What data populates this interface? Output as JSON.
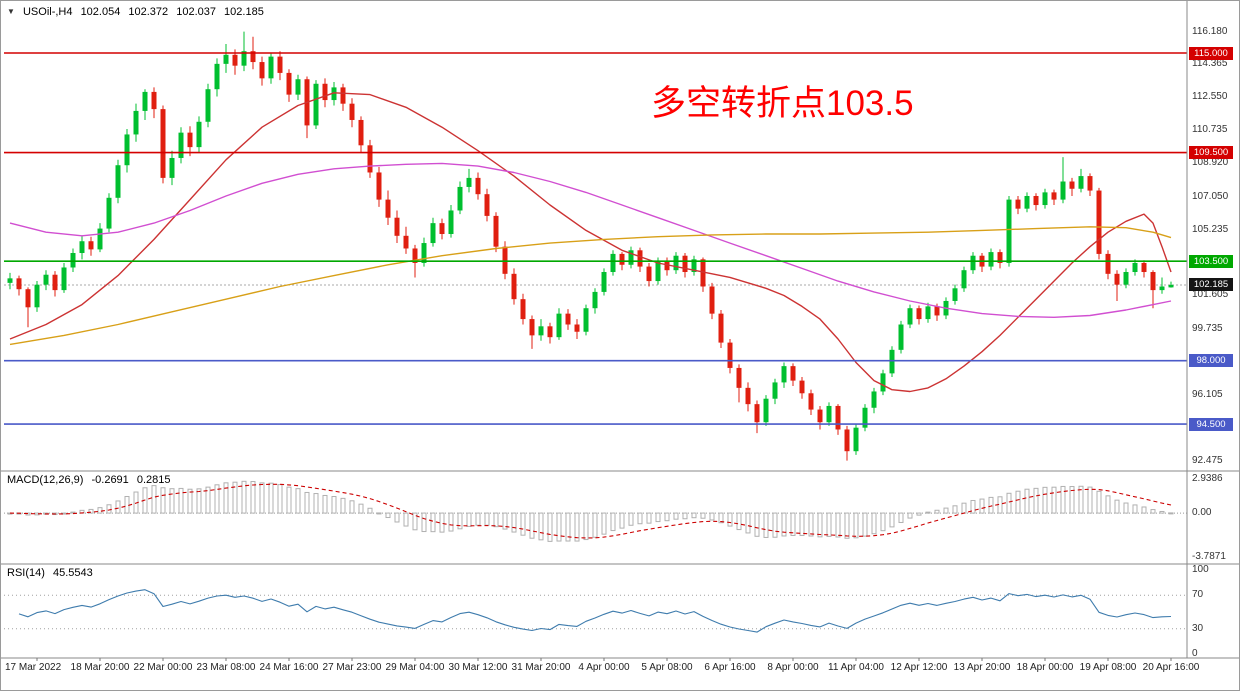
{
  "header": {
    "menu_icon": "▼",
    "symbol": "USOil-,H4",
    "open": "102.054",
    "high": "102.372",
    "low": "102.037",
    "close": "102.185"
  },
  "annotation": {
    "text": "多空转折点103.5",
    "color": "#ff0000"
  },
  "macd_panel": {
    "label": "MACD(12,26,9)",
    "value_main": "-0.2691",
    "value_signal": "0.2815",
    "axis_labels": [
      "2.9386",
      "0.00",
      "-3.7871"
    ],
    "axis_values": [
      2.9386,
      0,
      -3.7871
    ]
  },
  "rsi_panel": {
    "label": "RSI(14)",
    "value": "45.5543",
    "axis_labels": [
      "100",
      "70",
      "30",
      "0"
    ],
    "axis_values": [
      100,
      70,
      30,
      0
    ]
  },
  "chart_data": {
    "type": "candlestick",
    "symbol": "USOil-",
    "timeframe": "H4",
    "ylim": [
      92.0,
      117.0
    ],
    "price_axis_ticks": [
      "116.180",
      "114.365",
      "112.550",
      "110.735",
      "108.920",
      "107.050",
      "105.235",
      "101.605",
      "99.735",
      "96.105",
      "92.475"
    ],
    "x_labels": [
      "17 Mar 2022",
      "18 Mar 20:00",
      "22 Mar 00:00",
      "23 Mar 08:00",
      "24 Mar 16:00",
      "27 Mar 23:00",
      "29 Mar 04:00",
      "30 Mar 12:00",
      "31 Mar 20:00",
      "4 Apr 00:00",
      "5 Apr 08:00",
      "6 Apr 16:00",
      "8 Apr 00:00",
      "11 Apr 04:00",
      "12 Apr 12:00",
      "13 Apr 20:00",
      "18 Apr 00:00",
      "19 Apr 08:00",
      "20 Apr 16:00"
    ],
    "levels": [
      {
        "price": 115.0,
        "label": "115.000",
        "color": "#d40000"
      },
      {
        "price": 109.5,
        "label": "109.500",
        "color": "#d40000"
      },
      {
        "price": 103.5,
        "label": "103.500",
        "color": "#00a800"
      },
      {
        "price": 98.0,
        "label": "98.000",
        "color": "#4a5ac8"
      },
      {
        "price": 94.5,
        "label": "94.500",
        "color": "#4a5ac8"
      }
    ],
    "current_price": {
      "value": 102.185,
      "label": "102.185",
      "badge_color": "#141414"
    },
    "up_color": "#00bf2f",
    "down_color": "#e01f10",
    "candles": [
      [
        102.3,
        102.85,
        101.95,
        102.55
      ],
      [
        102.55,
        102.7,
        101.6,
        101.95
      ],
      [
        101.95,
        102.05,
        99.85,
        100.95
      ],
      [
        100.95,
        102.4,
        100.7,
        102.2
      ],
      [
        102.2,
        103.0,
        101.9,
        102.75
      ],
      [
        102.75,
        102.95,
        101.55,
        101.9
      ],
      [
        101.9,
        103.4,
        101.75,
        103.15
      ],
      [
        103.15,
        104.2,
        102.9,
        103.95
      ],
      [
        103.95,
        104.9,
        103.6,
        104.6
      ],
      [
        104.6,
        104.85,
        103.8,
        104.15
      ],
      [
        104.15,
        105.6,
        104.0,
        105.3
      ],
      [
        105.3,
        107.25,
        105.1,
        107.0
      ],
      [
        107.0,
        109.1,
        106.7,
        108.8
      ],
      [
        108.8,
        110.8,
        108.4,
        110.5
      ],
      [
        110.5,
        112.2,
        110.1,
        111.8
      ],
      [
        111.8,
        113.0,
        111.3,
        112.85
      ],
      [
        112.85,
        113.1,
        111.4,
        111.9
      ],
      [
        111.9,
        112.1,
        107.8,
        108.1
      ],
      [
        108.1,
        109.6,
        107.7,
        109.2
      ],
      [
        109.2,
        110.9,
        108.9,
        110.6
      ],
      [
        110.6,
        110.95,
        109.3,
        109.8
      ],
      [
        109.8,
        111.5,
        109.5,
        111.2
      ],
      [
        111.2,
        113.3,
        110.9,
        113.0
      ],
      [
        113.0,
        114.7,
        112.6,
        114.4
      ],
      [
        114.4,
        115.5,
        113.9,
        114.9
      ],
      [
        114.9,
        115.2,
        113.8,
        114.3
      ],
      [
        114.3,
        116.18,
        114.0,
        115.1
      ],
      [
        115.1,
        115.9,
        114.1,
        114.5
      ],
      [
        114.5,
        114.8,
        113.2,
        113.6
      ],
      [
        113.6,
        115.0,
        113.3,
        114.8
      ],
      [
        114.8,
        115.1,
        113.5,
        113.9
      ],
      [
        113.9,
        114.1,
        112.3,
        112.7
      ],
      [
        112.7,
        113.8,
        112.4,
        113.55
      ],
      [
        113.55,
        113.7,
        110.3,
        111.0
      ],
      [
        111.0,
        113.5,
        110.8,
        113.3
      ],
      [
        113.3,
        113.6,
        112.0,
        112.4
      ],
      [
        112.4,
        113.4,
        112.1,
        113.1
      ],
      [
        113.1,
        113.3,
        111.8,
        112.2
      ],
      [
        112.2,
        112.5,
        110.9,
        111.3
      ],
      [
        111.3,
        111.5,
        109.5,
        109.9
      ],
      [
        109.9,
        110.2,
        108.1,
        108.4
      ],
      [
        108.4,
        108.7,
        106.5,
        106.9
      ],
      [
        106.9,
        107.4,
        105.5,
        105.9
      ],
      [
        105.9,
        106.3,
        104.5,
        104.9
      ],
      [
        104.9,
        105.4,
        103.9,
        104.2
      ],
      [
        104.2,
        104.4,
        102.6,
        103.4
      ],
      [
        103.4,
        104.8,
        103.2,
        104.5
      ],
      [
        104.5,
        105.9,
        104.3,
        105.6
      ],
      [
        105.6,
        105.85,
        104.7,
        105.0
      ],
      [
        105.0,
        106.6,
        104.8,
        106.3
      ],
      [
        106.3,
        107.9,
        106.1,
        107.6
      ],
      [
        107.6,
        108.6,
        107.3,
        108.1
      ],
      [
        108.1,
        108.4,
        106.9,
        107.2
      ],
      [
        107.2,
        107.5,
        105.7,
        106.0
      ],
      [
        106.0,
        106.2,
        104.0,
        104.3
      ],
      [
        104.3,
        104.6,
        102.5,
        102.8
      ],
      [
        102.8,
        103.1,
        101.1,
        101.4
      ],
      [
        101.4,
        101.7,
        100.0,
        100.3
      ],
      [
        100.3,
        100.5,
        98.65,
        99.4
      ],
      [
        99.4,
        100.3,
        99.1,
        99.9
      ],
      [
        99.9,
        100.1,
        98.95,
        99.3
      ],
      [
        99.3,
        100.9,
        99.15,
        100.6
      ],
      [
        100.6,
        100.85,
        99.7,
        100.0
      ],
      [
        100.0,
        100.3,
        99.2,
        99.6
      ],
      [
        99.6,
        101.1,
        99.4,
        100.9
      ],
      [
        100.9,
        102.0,
        100.6,
        101.8
      ],
      [
        101.8,
        103.1,
        101.6,
        102.9
      ],
      [
        102.9,
        104.1,
        102.7,
        103.9
      ],
      [
        103.9,
        104.0,
        103.0,
        103.3
      ],
      [
        103.3,
        104.3,
        103.1,
        104.1
      ],
      [
        104.1,
        104.25,
        102.9,
        103.2
      ],
      [
        103.2,
        103.4,
        102.1,
        102.4
      ],
      [
        102.4,
        103.7,
        102.2,
        103.5
      ],
      [
        103.5,
        103.7,
        102.7,
        103.0
      ],
      [
        103.0,
        104.0,
        102.8,
        103.8
      ],
      [
        103.8,
        103.95,
        102.6,
        102.9
      ],
      [
        102.9,
        103.8,
        102.7,
        103.6
      ],
      [
        103.6,
        103.7,
        101.8,
        102.1
      ],
      [
        102.1,
        102.3,
        100.3,
        100.6
      ],
      [
        100.6,
        100.8,
        98.7,
        99.0
      ],
      [
        99.0,
        99.2,
        97.3,
        97.6
      ],
      [
        97.6,
        97.8,
        95.7,
        96.5
      ],
      [
        96.5,
        96.8,
        95.2,
        95.6
      ],
      [
        95.6,
        95.8,
        94.0,
        94.6
      ],
      [
        94.6,
        96.1,
        94.4,
        95.9
      ],
      [
        95.9,
        97.0,
        95.6,
        96.8
      ],
      [
        96.8,
        97.9,
        96.5,
        97.7
      ],
      [
        97.7,
        97.85,
        96.6,
        96.9
      ],
      [
        96.9,
        97.1,
        95.9,
        96.2
      ],
      [
        96.2,
        96.4,
        95.0,
        95.3
      ],
      [
        95.3,
        95.5,
        94.2,
        94.6
      ],
      [
        94.6,
        95.7,
        94.4,
        95.5
      ],
      [
        95.5,
        95.6,
        93.9,
        94.2
      ],
      [
        94.2,
        94.4,
        92.48,
        93.0
      ],
      [
        93.0,
        94.5,
        92.8,
        94.3
      ],
      [
        94.3,
        95.6,
        94.1,
        95.4
      ],
      [
        95.4,
        96.5,
        95.1,
        96.3
      ],
      [
        96.3,
        97.5,
        96.1,
        97.3
      ],
      [
        97.3,
        98.8,
        97.1,
        98.6
      ],
      [
        98.6,
        100.2,
        98.4,
        100.0
      ],
      [
        100.0,
        101.1,
        99.8,
        100.9
      ],
      [
        100.9,
        101.05,
        100.0,
        100.3
      ],
      [
        100.3,
        101.2,
        100.1,
        101.0
      ],
      [
        101.0,
        101.15,
        100.2,
        100.5
      ],
      [
        100.5,
        101.5,
        100.3,
        101.3
      ],
      [
        101.3,
        102.2,
        101.1,
        102.0
      ],
      [
        102.0,
        103.2,
        101.8,
        103.0
      ],
      [
        103.0,
        104.0,
        102.8,
        103.8
      ],
      [
        103.8,
        103.95,
        102.9,
        103.2
      ],
      [
        103.2,
        104.2,
        103.0,
        104.0
      ],
      [
        104.0,
        104.15,
        103.1,
        103.4
      ],
      [
        103.4,
        107.1,
        103.2,
        106.9
      ],
      [
        106.9,
        107.1,
        106.1,
        106.4
      ],
      [
        106.4,
        107.3,
        106.2,
        107.1
      ],
      [
        107.1,
        107.25,
        106.3,
        106.6
      ],
      [
        106.6,
        107.5,
        106.4,
        107.3
      ],
      [
        107.3,
        107.45,
        106.6,
        106.9
      ],
      [
        106.9,
        109.25,
        106.7,
        107.9
      ],
      [
        107.9,
        108.1,
        107.1,
        107.5
      ],
      [
        107.5,
        108.6,
        107.3,
        108.2
      ],
      [
        108.2,
        108.35,
        107.1,
        107.4
      ],
      [
        107.4,
        107.55,
        103.6,
        103.9
      ],
      [
        103.9,
        104.1,
        102.5,
        102.8
      ],
      [
        102.8,
        103.0,
        101.3,
        102.2
      ],
      [
        102.2,
        103.1,
        102.0,
        102.9
      ],
      [
        102.9,
        103.6,
        102.7,
        103.4
      ],
      [
        103.4,
        103.55,
        102.6,
        102.9
      ],
      [
        102.9,
        103.0,
        100.9,
        101.9
      ],
      [
        101.9,
        102.6,
        101.7,
        102.1
      ],
      [
        102.05,
        102.37,
        102.04,
        102.19
      ]
    ],
    "moving_averages": [
      {
        "name": "slow-red-ma",
        "color": "#cc3333",
        "points": [
          [
            0,
            99.2
          ],
          [
            4,
            100.0
          ],
          [
            8,
            101.1
          ],
          [
            12,
            102.7
          ],
          [
            16,
            104.7
          ],
          [
            20,
            106.9
          ],
          [
            24,
            109.1
          ],
          [
            28,
            110.9
          ],
          [
            32,
            112.1
          ],
          [
            36,
            112.8
          ],
          [
            40,
            112.7
          ],
          [
            44,
            112.0
          ],
          [
            48,
            110.9
          ],
          [
            52,
            109.6
          ],
          [
            56,
            108.2
          ],
          [
            60,
            106.6
          ],
          [
            64,
            105.2
          ],
          [
            68,
            104.1
          ],
          [
            72,
            103.4
          ],
          [
            76,
            103.0
          ],
          [
            80,
            102.6
          ],
          [
            84,
            102.0
          ],
          [
            86,
            101.6
          ],
          [
            88,
            101.0
          ],
          [
            90,
            100.3
          ],
          [
            92,
            99.2
          ],
          [
            94,
            97.9
          ],
          [
            96,
            96.9
          ],
          [
            98,
            96.4
          ],
          [
            100,
            96.3
          ],
          [
            102,
            96.5
          ],
          [
            104,
            97.0
          ],
          [
            106,
            97.7
          ],
          [
            108,
            98.5
          ],
          [
            110,
            99.4
          ],
          [
            112,
            100.4
          ],
          [
            114,
            101.4
          ],
          [
            116,
            102.4
          ],
          [
            118,
            103.4
          ],
          [
            120,
            104.3
          ],
          [
            122,
            105.1
          ],
          [
            124,
            105.7
          ],
          [
            126,
            106.1
          ],
          [
            127,
            105.6
          ],
          [
            128,
            104.3
          ],
          [
            129,
            102.9
          ]
        ]
      },
      {
        "name": "magenta-ma",
        "color": "#d14fd1",
        "points": [
          [
            0,
            105.6
          ],
          [
            4,
            105.1
          ],
          [
            8,
            104.9
          ],
          [
            12,
            105.1
          ],
          [
            16,
            105.6
          ],
          [
            20,
            106.3
          ],
          [
            24,
            107.1
          ],
          [
            28,
            107.8
          ],
          [
            32,
            108.3
          ],
          [
            36,
            108.6
          ],
          [
            40,
            108.75
          ],
          [
            44,
            108.85
          ],
          [
            48,
            108.9
          ],
          [
            52,
            108.75
          ],
          [
            56,
            108.4
          ],
          [
            60,
            107.9
          ],
          [
            64,
            107.3
          ],
          [
            68,
            106.6
          ],
          [
            72,
            105.9
          ],
          [
            76,
            105.2
          ],
          [
            80,
            104.5
          ],
          [
            84,
            103.8
          ],
          [
            88,
            103.1
          ],
          [
            92,
            102.4
          ],
          [
            96,
            101.8
          ],
          [
            100,
            101.3
          ],
          [
            104,
            100.9
          ],
          [
            108,
            100.6
          ],
          [
            112,
            100.45
          ],
          [
            116,
            100.4
          ],
          [
            120,
            100.5
          ],
          [
            124,
            100.8
          ],
          [
            129,
            101.3
          ]
        ]
      },
      {
        "name": "orange-ma",
        "color": "#d8a018",
        "points": [
          [
            0,
            98.9
          ],
          [
            6,
            99.4
          ],
          [
            12,
            100.0
          ],
          [
            18,
            100.7
          ],
          [
            24,
            101.4
          ],
          [
            30,
            102.1
          ],
          [
            36,
            102.7
          ],
          [
            42,
            103.3
          ],
          [
            48,
            103.8
          ],
          [
            54,
            104.2
          ],
          [
            60,
            104.5
          ],
          [
            66,
            104.7
          ],
          [
            72,
            104.85
          ],
          [
            78,
            104.95
          ],
          [
            84,
            105.0
          ],
          [
            90,
            105.0
          ],
          [
            96,
            105.05
          ],
          [
            102,
            105.1
          ],
          [
            108,
            105.2
          ],
          [
            114,
            105.3
          ],
          [
            120,
            105.4
          ],
          [
            124,
            105.35
          ],
          [
            127,
            105.1
          ],
          [
            129,
            104.8
          ]
        ]
      }
    ],
    "indicators": {
      "macd": {
        "fast": 12,
        "slow": 26,
        "signal": 9,
        "histogram_color": "#b0b0b0",
        "signal_color": "#cc0000",
        "scale_max": 2.9386,
        "scale_min": -3.7871
      },
      "rsi": {
        "period": 14,
        "color": "#3f7cad",
        "levels": [
          70,
          30
        ]
      }
    }
  }
}
